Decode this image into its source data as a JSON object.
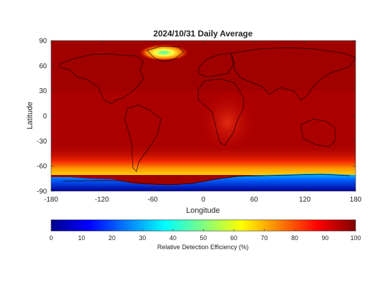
{
  "chart_data": {
    "type": "heatmap",
    "title": "2024/10/31 Daily Average",
    "xlabel": "Longitude",
    "ylabel": "Latitude",
    "xlim": [
      -180,
      180
    ],
    "ylim": [
      -90,
      90
    ],
    "xticks": [
      -180,
      -120,
      -60,
      0,
      60,
      120,
      180
    ],
    "yticks": [
      90,
      60,
      30,
      0,
      -30,
      -60,
      -90
    ],
    "grid": false,
    "colormap": "jet",
    "colorbar": {
      "label": "Relative Detection Efficiency (%)",
      "range": [
        0,
        100
      ],
      "ticks": [
        0,
        10,
        20,
        30,
        40,
        50,
        60,
        70,
        80,
        90,
        100
      ],
      "orientation": "horizontal",
      "position": "bottom"
    },
    "background_value": 95,
    "features": [
      {
        "description": "near-global high efficiency",
        "lon_range": [
          -180,
          180
        ],
        "lat_range": [
          -55,
          90
        ],
        "value": 95
      },
      {
        "description": "Greenland low",
        "lon": -40,
        "lat": 74,
        "value": 55
      },
      {
        "description": "Antarctic low",
        "lon_range": [
          -180,
          180
        ],
        "lat_range": [
          -90,
          -72
        ],
        "value": 5
      },
      {
        "description": "southern ocean gradient",
        "lon_range": [
          -180,
          180
        ],
        "lat_range": [
          -72,
          -60
        ],
        "value": 80
      }
    ]
  }
}
